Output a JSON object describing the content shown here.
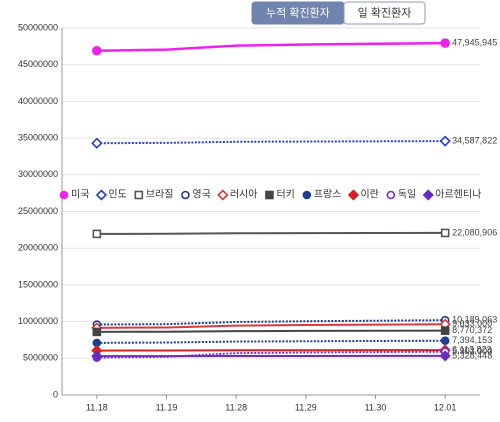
{
  "tabs": [
    "누적 확진환자",
    "일 확진환자"
  ],
  "active_tab": 0,
  "chart_data": {
    "type": "line",
    "categories": [
      "11.18",
      "11.19",
      "11.28",
      "11.29",
      "11.30",
      "12.01"
    ],
    "ylim": [
      0,
      50000000
    ],
    "yticks": [
      0,
      5000000,
      10000000,
      15000000,
      20000000,
      25000000,
      30000000,
      35000000,
      40000000,
      45000000,
      50000000
    ],
    "grid": true,
    "series": [
      {
        "name": "미국",
        "color": "#ee22ee",
        "marker": "circle",
        "marker_fill": "filled",
        "line_style": "solid",
        "values": [
          46900000,
          47050000,
          47600000,
          47750000,
          47850000,
          47945945
        ],
        "value_labels": [
          null,
          null,
          null,
          null,
          null,
          "47,945,945"
        ]
      },
      {
        "name": "인도",
        "color": "#2a3fc7",
        "marker": "diamond",
        "marker_fill": "hollow",
        "line_style": "dotted",
        "values": [
          34300000,
          34350000,
          34500000,
          34530000,
          34560000,
          34587822
        ],
        "value_labels": [
          null,
          null,
          null,
          null,
          null,
          "34,587,822"
        ]
      },
      {
        "name": "브라질",
        "color": "#555555",
        "marker": "square",
        "marker_fill": "hollow",
        "line_style": "solid",
        "values": [
          21950000,
          21970000,
          22040000,
          22050000,
          22070000,
          22080906
        ],
        "value_labels": [
          null,
          null,
          null,
          null,
          null,
          "22,080,906"
        ]
      },
      {
        "name": "영국",
        "color": "#1d3a8a",
        "marker": "circle",
        "marker_fill": "hollow",
        "line_style": "dotted",
        "values": [
          9600000,
          9650000,
          9950000,
          10050000,
          10120000,
          10189063
        ],
        "value_labels": [
          null,
          null,
          null,
          null,
          null,
          "10,189,063"
        ]
      },
      {
        "name": "러시아",
        "color": "#d83a3a",
        "marker": "diamond",
        "marker_fill": "hollow",
        "line_style": "solid",
        "values": [
          9150000,
          9200000,
          9450000,
          9530000,
          9580000,
          9633000
        ],
        "value_labels": [
          null,
          null,
          null,
          null,
          null,
          "9,633,000"
        ]
      },
      {
        "name": "터키",
        "color": "#444444",
        "marker": "square",
        "marker_fill": "filled",
        "line_style": "solid",
        "values": [
          8600000,
          8620000,
          8700000,
          8730000,
          8750000,
          8770372
        ],
        "value_labels": [
          null,
          null,
          null,
          null,
          null,
          "8,770,372"
        ]
      },
      {
        "name": "프랑스",
        "color": "#1e3f8f",
        "marker": "circle",
        "marker_fill": "filled",
        "line_style": "dotted",
        "values": [
          7100000,
          7150000,
          7280000,
          7320000,
          7360000,
          7394153
        ],
        "value_labels": [
          null,
          null,
          null,
          null,
          null,
          "7,394,153"
        ]
      },
      {
        "name": "이란",
        "color": "#d42222",
        "marker": "diamond",
        "marker_fill": "filled",
        "line_style": "solid",
        "values": [
          6050000,
          6060000,
          6090000,
          6100000,
          6106000,
          6113823
        ],
        "value_labels": [
          null,
          null,
          null,
          null,
          null,
          "6,113,823"
        ]
      },
      {
        "name": "독일",
        "color": "#7a2bc9",
        "marker": "circle",
        "marker_fill": "hollow",
        "line_style": "dotted",
        "values": [
          5100000,
          5200000,
          5700000,
          5790000,
          5850000,
          5903000
        ],
        "value_labels": [
          null,
          null,
          null,
          null,
          null,
          "5,903,000"
        ]
      },
      {
        "name": "아르헨티나",
        "color": "#6a2cc0",
        "marker": "diamond",
        "marker_fill": "filled",
        "line_style": "solid",
        "values": [
          5300000,
          5302000,
          5315000,
          5320000,
          5324000,
          5328448
        ],
        "value_labels": [
          null,
          null,
          null,
          null,
          null,
          "5,328,448"
        ]
      }
    ]
  }
}
